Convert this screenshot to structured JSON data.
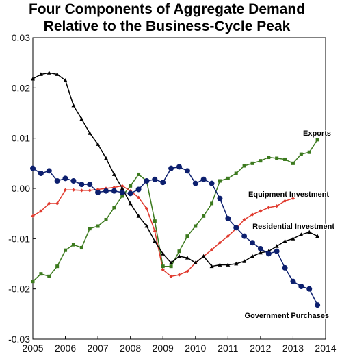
{
  "chart_data": {
    "type": "line",
    "title_lines": [
      "Four Components of Aggregate Demand",
      "Relative to the Business-Cycle Peak"
    ],
    "xlabel": "",
    "ylabel": "",
    "xlim": [
      2005,
      2014
    ],
    "ylim": [
      -0.03,
      0.03
    ],
    "x_ticks": [
      2005,
      2006,
      2007,
      2008,
      2009,
      2010,
      2011,
      2012,
      2013,
      2014
    ],
    "y_ticks": [
      0.03,
      0.02,
      0.01,
      0.0,
      -0.01,
      -0.02,
      -0.03
    ],
    "y_tick_labels": [
      "0.03",
      "0.02",
      "0.01",
      "0.00",
      "-0.01",
      "-0.02",
      "-0.03"
    ],
    "grid": false,
    "series": [
      {
        "name": "Exports",
        "color": "#3c7a1e",
        "marker": "square",
        "x": [
          2005.0,
          2005.25,
          2005.5,
          2005.75,
          2006.0,
          2006.25,
          2006.5,
          2006.75,
          2007.0,
          2007.25,
          2007.5,
          2007.75,
          2008.0,
          2008.25,
          2008.5,
          2008.75,
          2009.0,
          2009.25,
          2009.5,
          2009.75,
          2010.0,
          2010.25,
          2010.5,
          2010.75,
          2011.0,
          2011.25,
          2011.5,
          2011.75,
          2012.0,
          2012.25,
          2012.5,
          2012.75,
          2013.0,
          2013.25,
          2013.5,
          2013.75
        ],
        "y": [
          -0.0185,
          -0.017,
          -0.0175,
          -0.0155,
          -0.0123,
          -0.0112,
          -0.0118,
          -0.008,
          -0.0075,
          -0.0062,
          -0.0038,
          -0.0015,
          0.0005,
          0.0028,
          0.0015,
          -0.0065,
          -0.0155,
          -0.0155,
          -0.0125,
          -0.0095,
          -0.0075,
          -0.0055,
          -0.003,
          0.0015,
          0.002,
          0.003,
          0.0045,
          0.005,
          0.0055,
          0.0062,
          0.006,
          0.0058,
          0.005,
          0.0068,
          0.0072,
          0.0097
        ]
      },
      {
        "name": "Equipment Investment",
        "color": "#e03a2e",
        "marker": "diamond",
        "x": [
          2005.0,
          2005.25,
          2005.5,
          2005.75,
          2006.0,
          2006.25,
          2006.5,
          2006.75,
          2007.0,
          2007.25,
          2007.5,
          2007.75,
          2008.0,
          2008.25,
          2008.5,
          2008.75,
          2009.0,
          2009.25,
          2009.5,
          2009.75,
          2010.0,
          2010.25,
          2010.5,
          2010.75,
          2011.0,
          2011.25,
          2011.5,
          2011.75,
          2012.0,
          2012.25,
          2012.5,
          2012.75,
          2013.0
        ],
        "y": [
          -0.0055,
          -0.0045,
          -0.003,
          -0.003,
          -0.0003,
          -0.0003,
          -0.0004,
          -0.0004,
          -0.0002,
          0.0,
          0.0002,
          0.0005,
          -0.0005,
          -0.0018,
          -0.004,
          -0.0085,
          -0.0162,
          -0.0175,
          -0.0172,
          -0.0165,
          -0.0148,
          -0.0135,
          -0.0122,
          -0.0108,
          -0.0095,
          -0.008,
          -0.0062,
          -0.0052,
          -0.0045,
          -0.0038,
          -0.0035,
          -0.0025,
          -0.002
        ]
      },
      {
        "name": "Residential Investment",
        "color": "#000000",
        "marker": "triangle",
        "x": [
          2005.0,
          2005.25,
          2005.5,
          2005.75,
          2006.0,
          2006.25,
          2006.5,
          2006.75,
          2007.0,
          2007.25,
          2007.5,
          2007.75,
          2008.0,
          2008.25,
          2008.5,
          2008.75,
          2009.0,
          2009.25,
          2009.5,
          2009.75,
          2010.0,
          2010.25,
          2010.5,
          2010.75,
          2011.0,
          2011.25,
          2011.5,
          2011.75,
          2012.0,
          2012.25,
          2012.5,
          2012.75,
          2013.0,
          2013.25,
          2013.5,
          2013.75
        ],
        "y": [
          0.0218,
          0.0227,
          0.023,
          0.0227,
          0.0215,
          0.0165,
          0.0138,
          0.011,
          0.0088,
          0.006,
          0.0028,
          0.0,
          -0.003,
          -0.0055,
          -0.0075,
          -0.0105,
          -0.013,
          -0.0148,
          -0.0135,
          -0.0138,
          -0.0148,
          -0.0135,
          -0.0155,
          -0.0152,
          -0.0152,
          -0.015,
          -0.0145,
          -0.0135,
          -0.0128,
          -0.0125,
          -0.0115,
          -0.0105,
          -0.01,
          -0.0092,
          -0.0087,
          -0.0095
        ]
      },
      {
        "name": "Government Purchases",
        "color": "#0c1f6e",
        "marker": "circle",
        "x": [
          2005.0,
          2005.25,
          2005.5,
          2005.75,
          2006.0,
          2006.25,
          2006.5,
          2006.75,
          2007.0,
          2007.25,
          2007.5,
          2007.75,
          2008.0,
          2008.25,
          2008.5,
          2008.75,
          2009.0,
          2009.25,
          2009.5,
          2009.75,
          2010.0,
          2010.25,
          2010.5,
          2010.75,
          2011.0,
          2011.25,
          2011.5,
          2011.75,
          2012.0,
          2012.25,
          2012.5,
          2012.75,
          2013.0,
          2013.25,
          2013.5,
          2013.75
        ],
        "y": [
          0.004,
          0.003,
          0.0035,
          0.0015,
          0.002,
          0.0015,
          0.0008,
          0.0008,
          -0.0008,
          -0.0005,
          -0.0005,
          -0.0008,
          -0.001,
          -0.0002,
          0.0015,
          0.0018,
          0.0012,
          0.004,
          0.0043,
          0.0035,
          0.001,
          0.0018,
          0.001,
          -0.002,
          -0.006,
          -0.0078,
          -0.0095,
          -0.0108,
          -0.012,
          -0.013,
          -0.0125,
          -0.0158,
          -0.0185,
          -0.0195,
          -0.02,
          -0.0232
        ]
      }
    ]
  }
}
